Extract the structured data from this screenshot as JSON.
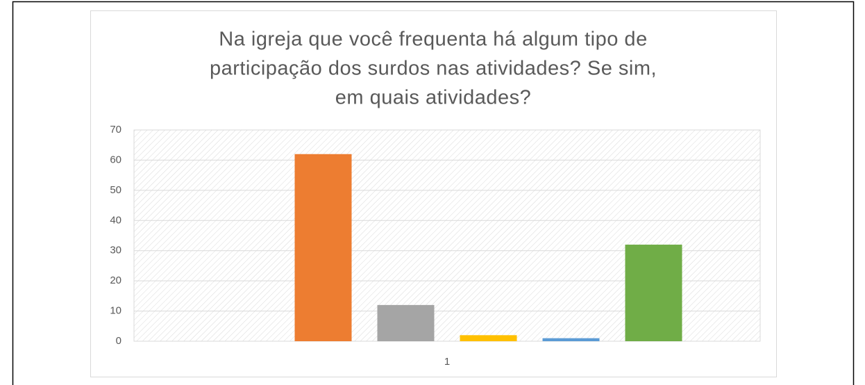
{
  "chart_data": {
    "type": "bar",
    "title": [
      "Na igreja que você frequenta há algum tipo de",
      "participação dos surdos nas atividades?  Se sim,",
      "em quais atividades?"
    ],
    "categories": [
      "1"
    ],
    "series": [
      {
        "color": "#4472c4",
        "values": [
          0
        ]
      },
      {
        "color": "#ed7d31",
        "values": [
          62
        ]
      },
      {
        "color": "#a5a5a5",
        "values": [
          12
        ]
      },
      {
        "color": "#ffc000",
        "values": [
          2
        ]
      },
      {
        "color": "#5b9bd5",
        "values": [
          1
        ]
      },
      {
        "color": "#70ad47",
        "values": [
          32
        ]
      }
    ],
    "ylim": [
      0,
      70
    ],
    "yticks": [
      0,
      10,
      20,
      30,
      40,
      50,
      60,
      70
    ],
    "grid": true
  }
}
